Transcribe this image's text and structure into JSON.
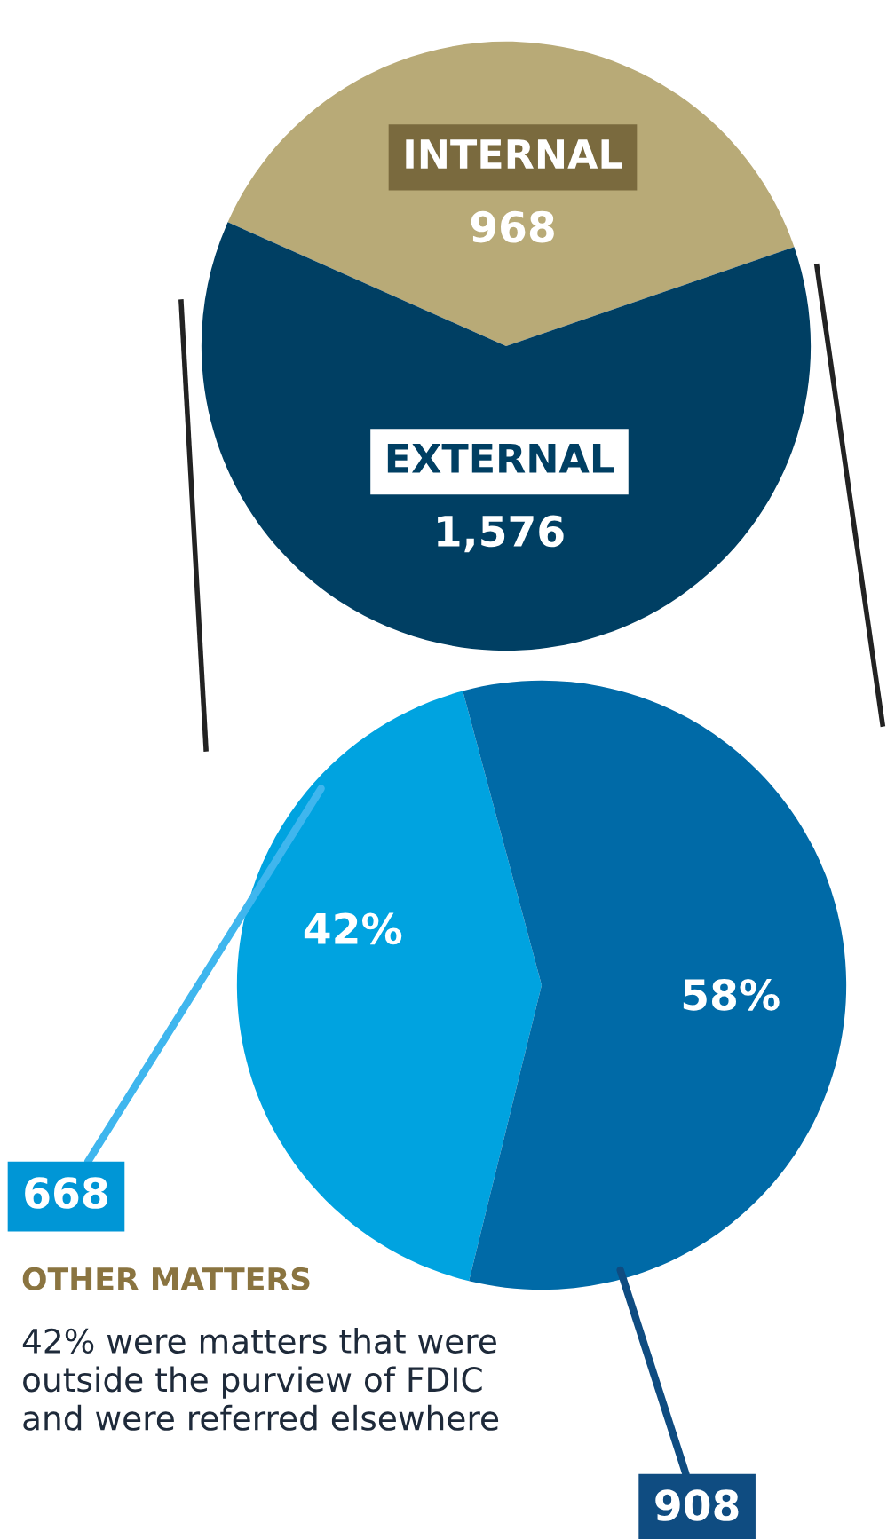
{
  "chart_data": [
    {
      "type": "pie",
      "categories": [
        "INTERNAL",
        "EXTERNAL"
      ],
      "values": [
        968,
        1576
      ],
      "colors": [
        "#b8aa77",
        "#003f63"
      ],
      "value_labels": [
        "968",
        "1,576"
      ]
    },
    {
      "type": "pie",
      "categories": [
        "668",
        "908"
      ],
      "values": [
        42,
        58
      ],
      "colors": [
        "#00a3e0",
        "#006aa7"
      ],
      "value_labels": [
        "42%",
        "58%"
      ],
      "annotations": [
        "OTHER MATTERS",
        "42% were matters that were\noutside the purview of FDIC\nand were referred elsewhere"
      ]
    }
  ]
}
